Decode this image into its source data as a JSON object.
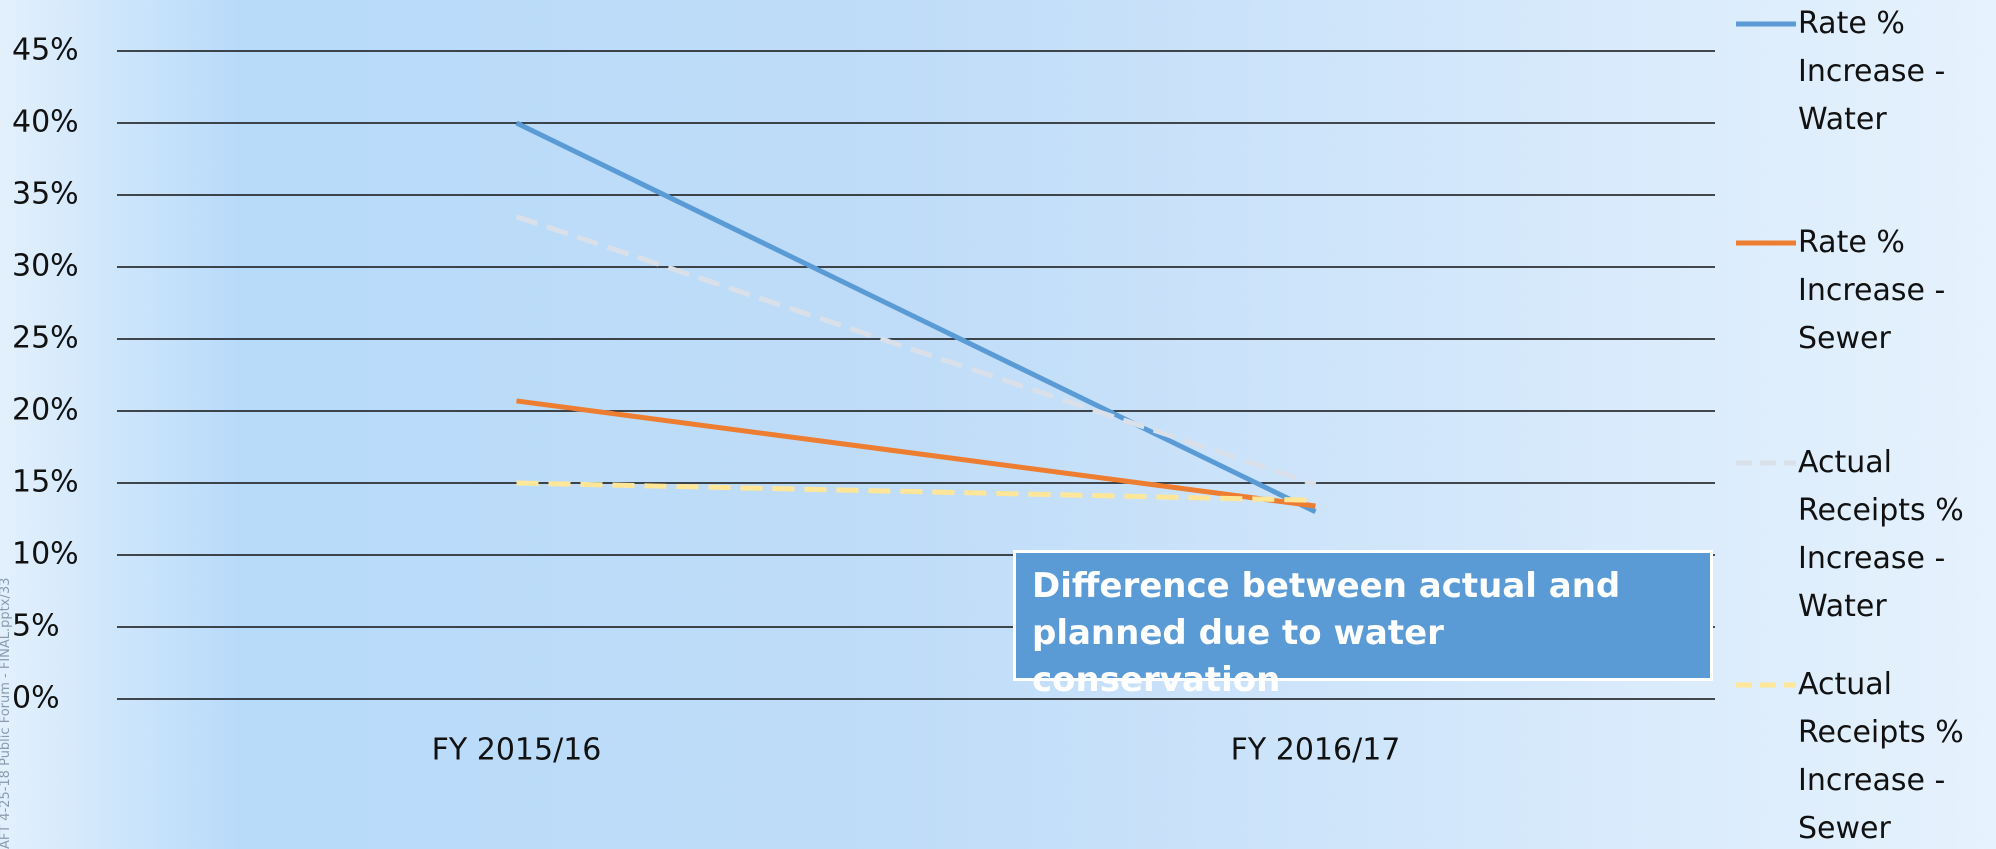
{
  "chart_data": {
    "type": "line",
    "categories": [
      "FY 2015/16",
      "FY 2016/17"
    ],
    "series": [
      {
        "name": "Rate % Increase - Water",
        "color": "#5b9bd5",
        "line_style": "solid",
        "values": [
          40,
          13
        ]
      },
      {
        "name": "Rate % Increase  - Sewer",
        "color": "#ed7d31",
        "line_style": "solid",
        "values": [
          20.7,
          13.4
        ]
      },
      {
        "name": "Actual Receipts % Increase - Water",
        "color": "#d9e0ea",
        "line_style": "dashed",
        "values": [
          33.5,
          14.9
        ]
      },
      {
        "name": "Actual Receipts % Increase - Sewer",
        "color": "#ffe699",
        "line_style": "dashed",
        "values": [
          15,
          13.8
        ]
      }
    ],
    "ylim": [
      0,
      45
    ],
    "yticks": [
      {
        "value": 0,
        "label": "0%"
      },
      {
        "value": 5,
        "label": "5%"
      },
      {
        "value": 10,
        "label": "10%"
      },
      {
        "value": 15,
        "label": "15%"
      },
      {
        "value": 20,
        "label": "20%"
      },
      {
        "value": 25,
        "label": "25%"
      },
      {
        "value": 30,
        "label": "30%"
      },
      {
        "value": 35,
        "label": "35%"
      },
      {
        "value": 40,
        "label": "40%"
      },
      {
        "value": 45,
        "label": "45%"
      }
    ],
    "grid": true,
    "legend": "right",
    "annotation": "Difference between actual and planned due to water conservation",
    "side_note": "AFT 4-25-18 Public Forum - FINAL.pptx/33"
  }
}
